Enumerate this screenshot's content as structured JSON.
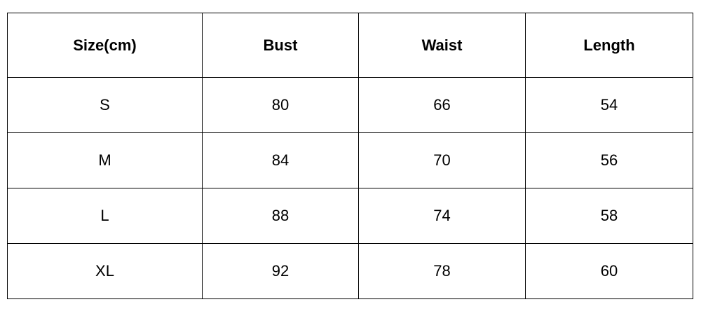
{
  "table": {
    "headers": [
      "Size(cm)",
      "Bust",
      "Waist",
      "Length"
    ],
    "rows": [
      [
        "S",
        "80",
        "66",
        "54"
      ],
      [
        "M",
        "84",
        "70",
        "56"
      ],
      [
        "L",
        "88",
        "74",
        "58"
      ],
      [
        "XL",
        "92",
        "78",
        "60"
      ]
    ]
  }
}
